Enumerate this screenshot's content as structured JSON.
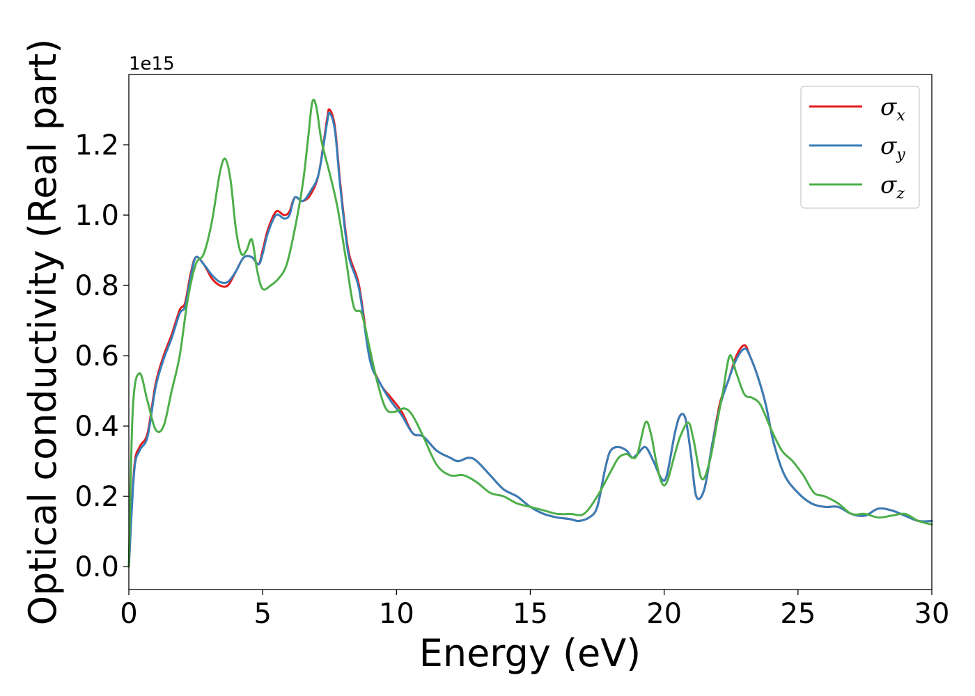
{
  "chart_data": {
    "type": "line",
    "xlabel": "Energy (eV)",
    "ylabel": "Optical conductivity (Real part)",
    "y_offset_label": "1e15",
    "xlim": [
      0,
      30
    ],
    "ylim": [
      -0.065,
      1.4
    ],
    "x_ticks": [
      0,
      5,
      10,
      15,
      20,
      25,
      30
    ],
    "x_tick_labels": [
      "0",
      "5",
      "10",
      "15",
      "20",
      "25",
      "30"
    ],
    "y_ticks": [
      0.0,
      0.2,
      0.4,
      0.6,
      0.8,
      1.0,
      1.2
    ],
    "y_tick_labels": [
      "0.0",
      "0.2",
      "0.4",
      "0.6",
      "0.8",
      "1.0",
      "1.2"
    ],
    "grid": false,
    "legend_position": "top-right",
    "series": [
      {
        "name": "σ",
        "subscript": "x",
        "color": "#e41a1c",
        "x": [
          0,
          0.2,
          0.4,
          0.7,
          1.0,
          1.3,
          1.6,
          1.9,
          2.1,
          2.3,
          2.5,
          2.8,
          3.1,
          3.4,
          3.7,
          4.0,
          4.3,
          4.6,
          4.85,
          5.0,
          5.2,
          5.5,
          5.8,
          6.0,
          6.2,
          6.5,
          6.8,
          7.1,
          7.4,
          7.5,
          7.7,
          7.9,
          8.2,
          8.6,
          9.0,
          9.4,
          9.8,
          10.2,
          10.6,
          11.0,
          11.5,
          12.0,
          12.3,
          12.7,
          13.0,
          13.5,
          14.0,
          14.5,
          15.0,
          15.5,
          16.0,
          16.5,
          16.8,
          17.2,
          17.5,
          17.8,
          18.0,
          18.3,
          18.6,
          18.8,
          19.0,
          19.3,
          19.6,
          19.9,
          20.1,
          20.4,
          20.6,
          20.8,
          21.0,
          21.2,
          21.5,
          21.8,
          22.1,
          22.4,
          22.7,
          23.0,
          23.2,
          23.5,
          23.8,
          24.1,
          24.5,
          25.0,
          25.5,
          26.0,
          26.5,
          27.0,
          27.5,
          28.0,
          28.5,
          29.0,
          29.5,
          30.0
        ],
        "y": [
          0.0,
          0.28,
          0.34,
          0.38,
          0.52,
          0.6,
          0.66,
          0.73,
          0.75,
          0.83,
          0.88,
          0.86,
          0.82,
          0.8,
          0.8,
          0.84,
          0.88,
          0.88,
          0.86,
          0.9,
          0.96,
          1.01,
          1.0,
          1.01,
          1.05,
          1.04,
          1.06,
          1.12,
          1.27,
          1.3,
          1.25,
          1.09,
          0.9,
          0.8,
          0.6,
          0.52,
          0.48,
          0.44,
          0.38,
          0.37,
          0.33,
          0.31,
          0.3,
          0.31,
          0.3,
          0.26,
          0.22,
          0.2,
          0.17,
          0.15,
          0.14,
          0.135,
          0.13,
          0.14,
          0.17,
          0.28,
          0.33,
          0.34,
          0.33,
          0.31,
          0.32,
          0.34,
          0.3,
          0.25,
          0.26,
          0.38,
          0.43,
          0.42,
          0.32,
          0.2,
          0.22,
          0.35,
          0.47,
          0.53,
          0.6,
          0.63,
          0.6,
          0.54,
          0.46,
          0.35,
          0.26,
          0.21,
          0.18,
          0.17,
          0.17,
          0.15,
          0.145,
          0.165,
          0.16,
          0.145,
          0.13,
          0.13
        ]
      },
      {
        "name": "σ",
        "subscript": "y",
        "color": "#377eb8",
        "x": [
          0,
          0.2,
          0.4,
          0.7,
          1.0,
          1.3,
          1.6,
          1.9,
          2.1,
          2.3,
          2.5,
          2.8,
          3.1,
          3.4,
          3.7,
          4.0,
          4.3,
          4.6,
          4.85,
          5.0,
          5.2,
          5.5,
          5.8,
          6.0,
          6.2,
          6.5,
          6.8,
          7.1,
          7.4,
          7.5,
          7.7,
          7.9,
          8.2,
          8.6,
          9.0,
          9.4,
          9.8,
          10.2,
          10.6,
          11.0,
          11.5,
          12.0,
          12.3,
          12.7,
          13.0,
          13.5,
          14.0,
          14.5,
          15.0,
          15.5,
          16.0,
          16.5,
          16.8,
          17.2,
          17.5,
          17.8,
          18.0,
          18.3,
          18.6,
          18.8,
          19.0,
          19.3,
          19.6,
          19.9,
          20.1,
          20.4,
          20.6,
          20.8,
          21.0,
          21.2,
          21.5,
          21.8,
          22.1,
          22.4,
          22.7,
          23.0,
          23.2,
          23.5,
          23.8,
          24.1,
          24.5,
          25.0,
          25.5,
          26.0,
          26.5,
          27.0,
          27.5,
          28.0,
          28.5,
          29.0,
          29.5,
          30.0
        ],
        "y": [
          0.0,
          0.27,
          0.33,
          0.37,
          0.51,
          0.59,
          0.65,
          0.72,
          0.74,
          0.82,
          0.88,
          0.86,
          0.83,
          0.81,
          0.81,
          0.84,
          0.88,
          0.88,
          0.86,
          0.89,
          0.95,
          1.0,
          0.99,
          1.0,
          1.05,
          1.04,
          1.07,
          1.12,
          1.26,
          1.29,
          1.24,
          1.08,
          0.89,
          0.79,
          0.59,
          0.52,
          0.47,
          0.43,
          0.38,
          0.37,
          0.33,
          0.31,
          0.3,
          0.31,
          0.3,
          0.26,
          0.22,
          0.2,
          0.17,
          0.15,
          0.14,
          0.135,
          0.13,
          0.14,
          0.17,
          0.28,
          0.33,
          0.34,
          0.33,
          0.31,
          0.32,
          0.34,
          0.3,
          0.25,
          0.26,
          0.38,
          0.43,
          0.42,
          0.32,
          0.2,
          0.22,
          0.35,
          0.46,
          0.53,
          0.59,
          0.62,
          0.6,
          0.54,
          0.46,
          0.35,
          0.26,
          0.21,
          0.18,
          0.17,
          0.17,
          0.15,
          0.145,
          0.165,
          0.16,
          0.145,
          0.13,
          0.13
        ]
      },
      {
        "name": "σ",
        "subscript": "z",
        "color": "#4daf4a",
        "x": [
          0,
          0.15,
          0.4,
          0.7,
          1.0,
          1.3,
          1.6,
          1.9,
          2.2,
          2.5,
          2.8,
          3.1,
          3.4,
          3.6,
          3.8,
          4.0,
          4.2,
          4.4,
          4.6,
          4.8,
          5.0,
          5.3,
          5.6,
          5.9,
          6.2,
          6.5,
          6.7,
          6.85,
          7.0,
          7.2,
          7.5,
          7.8,
          8.1,
          8.4,
          8.7,
          9.0,
          9.3,
          9.6,
          9.9,
          10.3,
          10.6,
          11.0,
          11.5,
          12.0,
          12.5,
          13.0,
          13.5,
          14.0,
          14.5,
          15.0,
          15.5,
          16.0,
          16.5,
          17.0,
          17.5,
          18.0,
          18.3,
          18.6,
          18.8,
          19.0,
          19.3,
          19.5,
          19.7,
          19.9,
          20.1,
          20.4,
          20.6,
          20.9,
          21.1,
          21.4,
          21.7,
          22.0,
          22.2,
          22.45,
          22.7,
          23.0,
          23.3,
          23.6,
          24.0,
          24.4,
          24.8,
          25.2,
          25.6,
          26.0,
          26.5,
          27.0,
          27.5,
          28.0,
          28.5,
          29.0,
          29.5,
          30.0
        ],
        "y": [
          0.0,
          0.45,
          0.55,
          0.47,
          0.39,
          0.4,
          0.5,
          0.6,
          0.76,
          0.86,
          0.89,
          0.98,
          1.12,
          1.16,
          1.1,
          0.96,
          0.89,
          0.9,
          0.93,
          0.84,
          0.79,
          0.8,
          0.82,
          0.86,
          0.96,
          1.09,
          1.22,
          1.32,
          1.31,
          1.21,
          1.12,
          1.02,
          0.88,
          0.74,
          0.72,
          0.62,
          0.52,
          0.45,
          0.44,
          0.45,
          0.43,
          0.37,
          0.29,
          0.26,
          0.26,
          0.24,
          0.21,
          0.2,
          0.18,
          0.17,
          0.16,
          0.15,
          0.15,
          0.15,
          0.2,
          0.27,
          0.31,
          0.32,
          0.31,
          0.32,
          0.41,
          0.38,
          0.3,
          0.24,
          0.24,
          0.32,
          0.37,
          0.41,
          0.36,
          0.25,
          0.3,
          0.42,
          0.5,
          0.6,
          0.55,
          0.49,
          0.48,
          0.46,
          0.39,
          0.33,
          0.3,
          0.26,
          0.21,
          0.2,
          0.18,
          0.15,
          0.15,
          0.14,
          0.145,
          0.15,
          0.13,
          0.12
        ]
      }
    ]
  }
}
